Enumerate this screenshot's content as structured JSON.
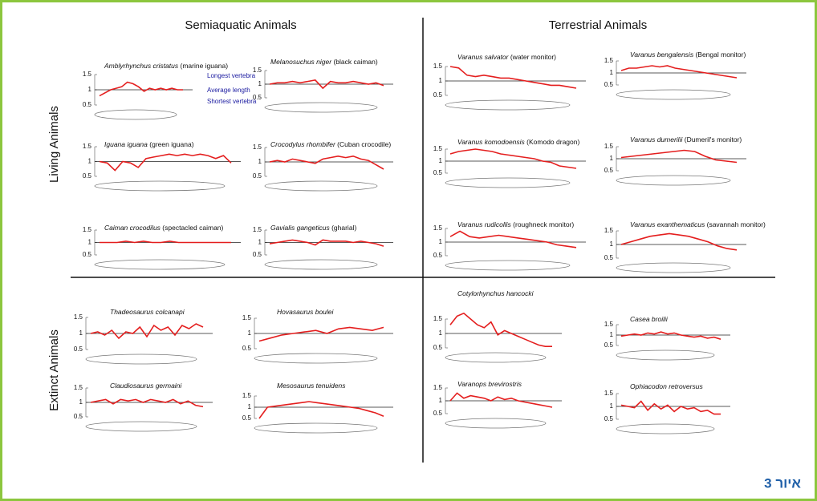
{
  "column_headers": [
    "Semiaquatic Animals",
    "Terrestrial Animals"
  ],
  "row_headers": [
    "Living Animals",
    "Extinct Animals"
  ],
  "caption": "איור 3",
  "chart_data": [
    {
      "type": "line",
      "title": "Amblyrhynchus cristatus",
      "subtitle": "(marine iguana)",
      "annotations": [
        "Longest vertebra",
        "Average length",
        "Shortest vertebra"
      ],
      "ylim": [
        0.5,
        1.5
      ],
      "yticks": [
        1.5,
        1,
        0.5
      ],
      "average_line": 1,
      "color": "#e41e1e",
      "values": [
        0.8,
        0.9,
        1.0,
        1.05,
        1.1,
        1.25,
        1.2,
        1.1,
        0.95,
        1.05,
        1.0,
        1.05,
        1.0,
        1.05,
        1.0,
        1.0
      ]
    },
    {
      "type": "line",
      "title": "Melanosuchus niger",
      "subtitle": "(black caiman)",
      "ylim": [
        0.5,
        1.5
      ],
      "yticks": [
        1.5,
        1,
        0.5
      ],
      "average_line": 1,
      "color": "#e41e1e",
      "values": [
        1.0,
        1.05,
        1.05,
        1.1,
        1.05,
        1.1,
        1.15,
        0.85,
        1.1,
        1.05,
        1.05,
        1.1,
        1.05,
        1.0,
        1.05,
        0.95
      ]
    },
    {
      "type": "line",
      "title": "Iguana iguana",
      "subtitle": "(green iguana)",
      "ylim": [
        0.5,
        1.5
      ],
      "yticks": [
        1.5,
        1,
        0.5
      ],
      "average_line": 1,
      "color": "#e41e1e",
      "values": [
        1.0,
        0.95,
        0.7,
        1.0,
        0.95,
        0.8,
        1.1,
        1.15,
        1.2,
        1.25,
        1.2,
        1.25,
        1.2,
        1.25,
        1.2,
        1.1,
        1.2,
        0.95
      ]
    },
    {
      "type": "line",
      "title": "Crocodylus rhombifer",
      "subtitle": "(Cuban crocodile)",
      "ylim": [
        0.5,
        1.5
      ],
      "yticks": [
        1.5,
        1,
        0.5
      ],
      "average_line": 1,
      "color": "#e41e1e",
      "values": [
        1.0,
        1.05,
        1.0,
        1.1,
        1.05,
        1.0,
        0.95,
        1.1,
        1.15,
        1.2,
        1.15,
        1.2,
        1.1,
        1.05,
        0.9,
        0.75
      ]
    },
    {
      "type": "line",
      "title": "Caiman crocodilus",
      "subtitle": "(spectacled caiman)",
      "ylim": [
        0.5,
        1.5
      ],
      "yticks": [
        1.5,
        1,
        0.5
      ],
      "average_line": 1,
      "color": "#e41e1e",
      "values": [
        1.0,
        1.0,
        1.0,
        1.05,
        1.0,
        1.05,
        1.0,
        1.0,
        1.05,
        1.0,
        1.0,
        1.0,
        1.0,
        1.0,
        1.0,
        1.0
      ]
    },
    {
      "type": "line",
      "title": "Gavialis gangeticus",
      "subtitle": "(gharial)",
      "ylim": [
        0.5,
        1.5
      ],
      "yticks": [
        1.5,
        1,
        0.5
      ],
      "average_line": 1,
      "color": "#e41e1e",
      "values": [
        0.95,
        1.0,
        1.05,
        1.1,
        1.05,
        1.0,
        0.9,
        1.1,
        1.05,
        1.05,
        1.05,
        1.0,
        1.05,
        1.0,
        0.95,
        0.85
      ]
    },
    {
      "type": "line",
      "title": "Thadeosaurus colcanapi",
      "ylim": [
        0.5,
        1.5
      ],
      "yticks": [
        1.5,
        1,
        0.5
      ],
      "average_line": 1,
      "color": "#e41e1e",
      "values": [
        1.0,
        1.05,
        0.95,
        1.1,
        0.85,
        1.05,
        1.0,
        1.2,
        0.9,
        1.25,
        1.1,
        1.2,
        0.95,
        1.25,
        1.15,
        1.3,
        1.2
      ]
    },
    {
      "type": "line",
      "title": "Hovasaurus boulei",
      "ylim": [
        0.5,
        1.5
      ],
      "yticks": [
        1.5,
        1,
        0.5
      ],
      "average_line": 1,
      "color": "#e41e1e",
      "values": [
        0.75,
        0.85,
        0.95,
        1.0,
        1.05,
        1.1,
        1.0,
        1.15,
        1.2,
        1.15,
        1.1,
        1.2
      ]
    },
    {
      "type": "line",
      "title": "Claudiosaurus germaini",
      "ylim": [
        0.5,
        1.5
      ],
      "yticks": [
        1.5,
        1,
        0.5
      ],
      "average_line": 1,
      "color": "#e41e1e",
      "values": [
        1.0,
        1.05,
        1.1,
        0.95,
        1.1,
        1.05,
        1.1,
        1.0,
        1.1,
        1.05,
        1.0,
        1.1,
        0.95,
        1.05,
        0.9,
        0.85
      ]
    },
    {
      "type": "line",
      "title": "Mesosaurus tenuidens",
      "ylim": [
        0.5,
        1.5
      ],
      "yticks": [
        1.5,
        1,
        0.5
      ],
      "average_line": 1,
      "color": "#e41e1e",
      "values": [
        0.5,
        1.0,
        1.05,
        1.1,
        1.15,
        1.2,
        1.25,
        1.2,
        1.15,
        1.1,
        1.05,
        1.0,
        0.95,
        0.85,
        0.75,
        0.6
      ]
    },
    {
      "type": "line",
      "title": "Varanus salvator",
      "subtitle": "(water monitor)",
      "ylim": [
        0.5,
        1.5
      ],
      "yticks": [
        1.5,
        1,
        0.5
      ],
      "average_line": 1,
      "color": "#e41e1e",
      "values": [
        1.5,
        1.45,
        1.2,
        1.15,
        1.2,
        1.15,
        1.1,
        1.1,
        1.05,
        1.0,
        0.95,
        0.9,
        0.85,
        0.85,
        0.8,
        0.75
      ]
    },
    {
      "type": "line",
      "title": "Varanus bengalensis",
      "subtitle": "(Bengal monitor)",
      "ylim": [
        0.5,
        1.5
      ],
      "yticks": [
        1.5,
        1,
        0.5
      ],
      "average_line": 1,
      "color": "#e41e1e",
      "values": [
        1.1,
        1.2,
        1.2,
        1.25,
        1.3,
        1.25,
        1.3,
        1.2,
        1.15,
        1.1,
        1.05,
        1.0,
        0.95,
        0.9,
        0.85,
        0.8
      ]
    },
    {
      "type": "line",
      "title": "Varanus komodoensis",
      "subtitle": "(Komodo dragon)",
      "ylim": [
        0.5,
        1.5
      ],
      "yticks": [
        1.5,
        1,
        0.5
      ],
      "average_line": 1,
      "color": "#e41e1e",
      "values": [
        1.3,
        1.4,
        1.45,
        1.5,
        1.45,
        1.4,
        1.3,
        1.25,
        1.2,
        1.15,
        1.1,
        1.0,
        0.95,
        0.8,
        0.75,
        0.7
      ]
    },
    {
      "type": "line",
      "title": "Varanus dumerilii",
      "subtitle": "(Dumeril's monitor)",
      "ylim": [
        0.5,
        1.5
      ],
      "yticks": [
        1.5,
        1,
        0.5
      ],
      "average_line": 1,
      "color": "#e41e1e",
      "values": [
        1.05,
        1.1,
        1.15,
        1.2,
        1.25,
        1.3,
        1.35,
        1.3,
        1.1,
        0.95,
        0.9,
        0.85
      ]
    },
    {
      "type": "line",
      "title": "Varanus rudicollis",
      "subtitle": "(roughneck monitor)",
      "ylim": [
        0.5,
        1.5
      ],
      "yticks": [
        1.5,
        1,
        0.5
      ],
      "average_line": 1,
      "color": "#e41e1e",
      "values": [
        1.2,
        1.4,
        1.2,
        1.15,
        1.2,
        1.25,
        1.2,
        1.15,
        1.1,
        1.05,
        1.0,
        0.9,
        0.85,
        0.8
      ]
    },
    {
      "type": "line",
      "title": "Varanus exanthematicus",
      "subtitle": "(savannah monitor)",
      "ylim": [
        0.5,
        1.5
      ],
      "yticks": [
        1.5,
        1,
        0.5
      ],
      "average_line": 1,
      "color": "#e41e1e",
      "values": [
        1.0,
        1.1,
        1.2,
        1.3,
        1.35,
        1.4,
        1.35,
        1.3,
        1.2,
        1.1,
        0.95,
        0.85,
        0.8
      ]
    },
    {
      "type": "line",
      "title": "Cotylorhynchus hancocki",
      "ylim": [
        0.5,
        1.5
      ],
      "yticks": [
        1.5,
        1,
        0.5
      ],
      "average_line": 1,
      "color": "#e41e1e",
      "values": [
        1.3,
        1.6,
        1.7,
        1.5,
        1.3,
        1.2,
        1.4,
        0.95,
        1.1,
        1.0,
        0.9,
        0.8,
        0.7,
        0.6,
        0.55,
        0.55
      ]
    },
    {
      "type": "line",
      "title": "Casea broilii",
      "ylim": [
        0.5,
        1.5
      ],
      "yticks": [
        1.5,
        1,
        0.5
      ],
      "average_line": 1,
      "color": "#e41e1e",
      "values": [
        0.95,
        1.0,
        1.05,
        1.0,
        1.1,
        1.05,
        1.15,
        1.05,
        1.1,
        1.0,
        0.95,
        0.9,
        0.95,
        0.85,
        0.9,
        0.8
      ]
    },
    {
      "type": "line",
      "title": "Varanops brevirostris",
      "ylim": [
        0.5,
        1.5
      ],
      "yticks": [
        1.5,
        1,
        0.5
      ],
      "average_line": 1,
      "color": "#e41e1e",
      "values": [
        1.0,
        1.3,
        1.1,
        1.2,
        1.15,
        1.1,
        1.0,
        1.15,
        1.05,
        1.1,
        1.0,
        0.95,
        0.9,
        0.85,
        0.8,
        0.75
      ]
    },
    {
      "type": "line",
      "title": "Ophiacodon retroversus",
      "ylim": [
        0.5,
        1.5
      ],
      "yticks": [
        1.5,
        1,
        0.5
      ],
      "average_line": 1,
      "color": "#e41e1e",
      "values": [
        1.05,
        1.0,
        0.95,
        1.2,
        0.85,
        1.1,
        0.9,
        1.05,
        0.8,
        1.0,
        0.9,
        0.95,
        0.8,
        0.85,
        0.7,
        0.7
      ]
    }
  ]
}
